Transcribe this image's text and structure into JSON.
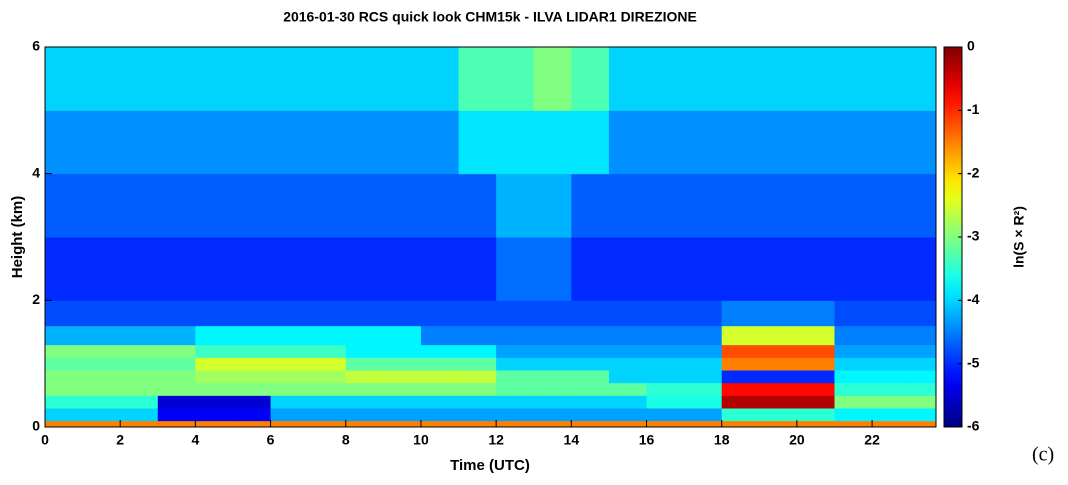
{
  "chart_data": {
    "type": "heatmap",
    "title": "2016-01-30 RCS quick look CHM15k - ILVA LIDAR1 DIREZIONE",
    "x_label": "Time (UTC)",
    "y_label": "Height (km)",
    "colorbar_label": "ln(S × R²)",
    "panel_label": "(c)",
    "colormap": "jet",
    "xbins": [
      0,
      1,
      2,
      3,
      4,
      5,
      6,
      7,
      8,
      9,
      10,
      11,
      12,
      13,
      14,
      15,
      16,
      17,
      18,
      19,
      20,
      21,
      22,
      23,
      23.7
    ],
    "ybins": [
      0,
      0.1,
      0.3,
      0.5,
      0.7,
      0.9,
      1.1,
      1.3,
      1.6,
      2,
      3,
      4,
      5,
      6
    ],
    "values": [
      [
        -1.5,
        -1.5,
        -1.5,
        -1.5,
        -1.5,
        -1.5,
        -1.5,
        -1.5,
        -1.5,
        -1.5,
        -1.5,
        -1.5,
        -1.5,
        -1.5,
        -1.5,
        -1.5,
        -1.5,
        -1.5,
        -1.5,
        -1.5,
        -1.5,
        -1.5,
        -1.5,
        -1.5
      ],
      [
        -4.0,
        -4.0,
        -4.0,
        -5.3,
        -5.3,
        -5.3,
        -4.3,
        -4.3,
        -4.3,
        -4.3,
        -4.3,
        -4.3,
        -4.3,
        -4.3,
        -4.3,
        -4.3,
        -4.3,
        -4.3,
        -3.5,
        -3.5,
        -3.5,
        -3.8,
        -3.8,
        -3.8
      ],
      [
        -3.5,
        -3.5,
        -3.5,
        -5.5,
        -5.5,
        -5.5,
        -4.0,
        -4.0,
        -4.0,
        -4.0,
        -4.0,
        -4.0,
        -4.0,
        -4.0,
        -4.0,
        -4.0,
        -3.6,
        -3.6,
        -0.3,
        -0.3,
        -0.3,
        -3.0,
        -3.0,
        -3.0
      ],
      [
        -3.0,
        -3.0,
        -3.0,
        -3.0,
        -3.0,
        -3.0,
        -3.0,
        -3.0,
        -3.0,
        -3.0,
        -3.0,
        -3.0,
        -3.2,
        -3.2,
        -3.2,
        -3.2,
        -3.5,
        -3.5,
        -0.8,
        -0.8,
        -0.8,
        -3.5,
        -3.5,
        -3.5
      ],
      [
        -3.0,
        -3.0,
        -3.0,
        -3.0,
        -2.8,
        -2.8,
        -2.8,
        -2.8,
        -2.6,
        -2.6,
        -2.6,
        -2.6,
        -3.2,
        -3.2,
        -3.2,
        -4.0,
        -4.0,
        -4.0,
        -5.0,
        -5.0,
        -5.0,
        -3.8,
        -3.8,
        -3.8
      ],
      [
        -3.2,
        -3.2,
        -3.2,
        -3.2,
        -2.5,
        -2.5,
        -2.5,
        -2.5,
        -3.2,
        -3.2,
        -3.2,
        -3.2,
        -4.0,
        -4.0,
        -4.0,
        -4.0,
        -4.0,
        -4.0,
        -1.5,
        -1.5,
        -1.5,
        -4.0,
        -4.0,
        -4.0
      ],
      [
        -3.0,
        -3.0,
        -3.0,
        -3.0,
        -3.4,
        -3.4,
        -3.4,
        -3.4,
        -3.8,
        -3.8,
        -3.8,
        -3.8,
        -4.3,
        -4.3,
        -4.3,
        -4.3,
        -4.3,
        -4.3,
        -1.2,
        -1.2,
        -1.2,
        -4.3,
        -4.3,
        -4.3
      ],
      [
        -4.2,
        -4.2,
        -4.2,
        -4.2,
        -3.8,
        -3.8,
        -3.8,
        -3.8,
        -3.8,
        -3.8,
        -4.5,
        -4.5,
        -4.5,
        -4.5,
        -4.5,
        -4.5,
        -4.5,
        -4.5,
        -2.5,
        -2.5,
        -2.5,
        -4.5,
        -4.5,
        -4.5
      ],
      [
        -4.8,
        -4.8,
        -4.8,
        -4.8,
        -4.8,
        -4.8,
        -4.8,
        -4.8,
        -4.8,
        -4.8,
        -4.8,
        -4.8,
        -4.8,
        -4.8,
        -4.8,
        -4.8,
        -4.8,
        -4.8,
        -4.5,
        -4.5,
        -4.5,
        -4.8,
        -4.8,
        -4.8
      ],
      [
        -5.0,
        -5.0,
        -5.0,
        -5.0,
        -5.0,
        -5.0,
        -5.0,
        -5.0,
        -5.0,
        -5.0,
        -5.0,
        -5.0,
        -4.6,
        -4.6,
        -5.0,
        -5.0,
        -5.0,
        -5.0,
        -5.0,
        -5.0,
        -5.0,
        -5.0,
        -5.0,
        -5.0
      ],
      [
        -4.7,
        -4.7,
        -4.7,
        -4.7,
        -4.7,
        -4.7,
        -4.7,
        -4.7,
        -4.7,
        -4.7,
        -4.7,
        -4.7,
        -4.2,
        -4.2,
        -4.7,
        -4.7,
        -4.7,
        -4.7,
        -4.7,
        -4.7,
        -4.7,
        -4.7,
        -4.7,
        -4.7
      ],
      [
        -4.4,
        -4.4,
        -4.4,
        -4.4,
        -4.4,
        -4.4,
        -4.4,
        -4.4,
        -4.4,
        -4.4,
        -4.4,
        -3.9,
        -3.9,
        -3.9,
        -3.9,
        -4.4,
        -4.4,
        -4.4,
        -4.4,
        -4.4,
        -4.4,
        -4.4,
        -4.4,
        -4.4
      ],
      [
        -4.0,
        -4.0,
        -4.0,
        -4.0,
        -4.0,
        -4.0,
        -4.0,
        -4.0,
        -4.0,
        -4.0,
        -4.0,
        -3.3,
        -3.3,
        -3.0,
        -3.3,
        -4.0,
        -4.0,
        -4.0,
        -4.0,
        -4.0,
        -4.0,
        -4.0,
        -4.0,
        -4.0
      ]
    ],
    "xlim": [
      0,
      23.7
    ],
    "xticks": [
      0,
      2,
      4,
      6,
      8,
      10,
      12,
      14,
      16,
      18,
      20,
      22
    ],
    "ylim": [
      0,
      6
    ],
    "yticks": [
      0,
      2,
      4,
      6
    ],
    "clim": [
      -6,
      0
    ],
    "cticks": [
      0,
      -1,
      -2,
      -3,
      -4,
      -5,
      -6
    ]
  }
}
